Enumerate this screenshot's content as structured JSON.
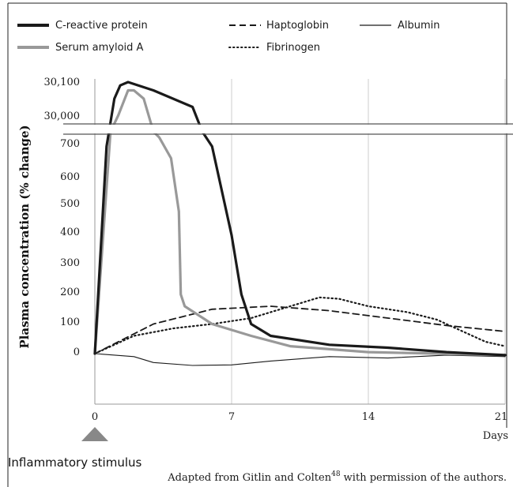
{
  "chart_data": {
    "type": "line",
    "ylabel": "Plasma concentration (% change)",
    "xlabel": "Days",
    "x_ticks": [
      "0",
      "7",
      "14",
      "21"
    ],
    "y_ticks_lower": [
      "0",
      "100",
      "200",
      "300",
      "400",
      "500",
      "600",
      "700"
    ],
    "y_ticks_upper": [
      "30,000",
      "30,100"
    ],
    "xlim": [
      0,
      21
    ],
    "ylim_lower": [
      -100,
      750
    ],
    "ylim_upper": [
      29950,
      30130
    ],
    "axis_break_between": [
      750,
      29950
    ],
    "grid": "vertical lines at 7, 14, 21",
    "legend_position": "top",
    "annotation": "Inflammatory stimulus",
    "annotation_x": 0,
    "credit_prefix": "Adapted from Gitlin and Colten",
    "credit_superscript": "48",
    "credit_suffix": " with permission of the authors.",
    "series": [
      {
        "name": "C-reactive protein",
        "style": "thick-solid",
        "color": "#1a1a1a",
        "points": [
          [
            0,
            0
          ],
          [
            0.6,
            700
          ],
          [
            1.0,
            30050
          ],
          [
            1.3,
            30090
          ],
          [
            1.7,
            30100
          ],
          [
            3,
            30075
          ],
          [
            5,
            30025
          ],
          [
            5.5,
            750
          ],
          [
            6,
            700
          ],
          [
            7,
            400
          ],
          [
            7.5,
            200
          ],
          [
            8,
            100
          ],
          [
            9,
            60
          ],
          [
            12,
            30
          ],
          [
            15,
            20
          ],
          [
            18,
            5
          ],
          [
            21,
            -5
          ]
        ]
      },
      {
        "name": "Serum amyloid A",
        "style": "thick-solid",
        "color": "#999999",
        "points": [
          [
            0,
            0
          ],
          [
            0.8,
            750
          ],
          [
            1.2,
            30000
          ],
          [
            1.7,
            30075
          ],
          [
            2,
            30075
          ],
          [
            2.5,
            30050
          ],
          [
            3,
            750
          ],
          [
            3.3,
            730
          ],
          [
            3.9,
            660
          ],
          [
            4.3,
            480
          ],
          [
            4.4,
            200
          ],
          [
            4.6,
            160
          ],
          [
            6,
            100
          ],
          [
            8,
            60
          ],
          [
            10,
            25
          ],
          [
            14,
            5
          ],
          [
            21,
            -5
          ]
        ]
      },
      {
        "name": "Haptoglobin",
        "style": "dashed",
        "color": "#1a1a1a",
        "points": [
          [
            0,
            0
          ],
          [
            3,
            100
          ],
          [
            6,
            150
          ],
          [
            9,
            160
          ],
          [
            12,
            145
          ],
          [
            15,
            120
          ],
          [
            18,
            95
          ],
          [
            21,
            75
          ]
        ]
      },
      {
        "name": "Fibrinogen",
        "style": "dotted",
        "color": "#1a1a1a",
        "points": [
          [
            0,
            0
          ],
          [
            2,
            60
          ],
          [
            4,
            85
          ],
          [
            6,
            100
          ],
          [
            8,
            120
          ],
          [
            10,
            160
          ],
          [
            11.5,
            190
          ],
          [
            12.5,
            185
          ],
          [
            14,
            160
          ],
          [
            16,
            140
          ],
          [
            17.5,
            115
          ],
          [
            19,
            70
          ],
          [
            20,
            40
          ],
          [
            21,
            25
          ]
        ]
      },
      {
        "name": "Albumin",
        "style": "thin-solid",
        "color": "#1a1a1a",
        "points": [
          [
            0,
            0
          ],
          [
            2,
            -10
          ],
          [
            3,
            -30
          ],
          [
            5,
            -40
          ],
          [
            7,
            -38
          ],
          [
            9,
            -25
          ],
          [
            12,
            -10
          ],
          [
            15,
            -15
          ],
          [
            18,
            -5
          ],
          [
            21,
            -10
          ]
        ]
      }
    ]
  }
}
